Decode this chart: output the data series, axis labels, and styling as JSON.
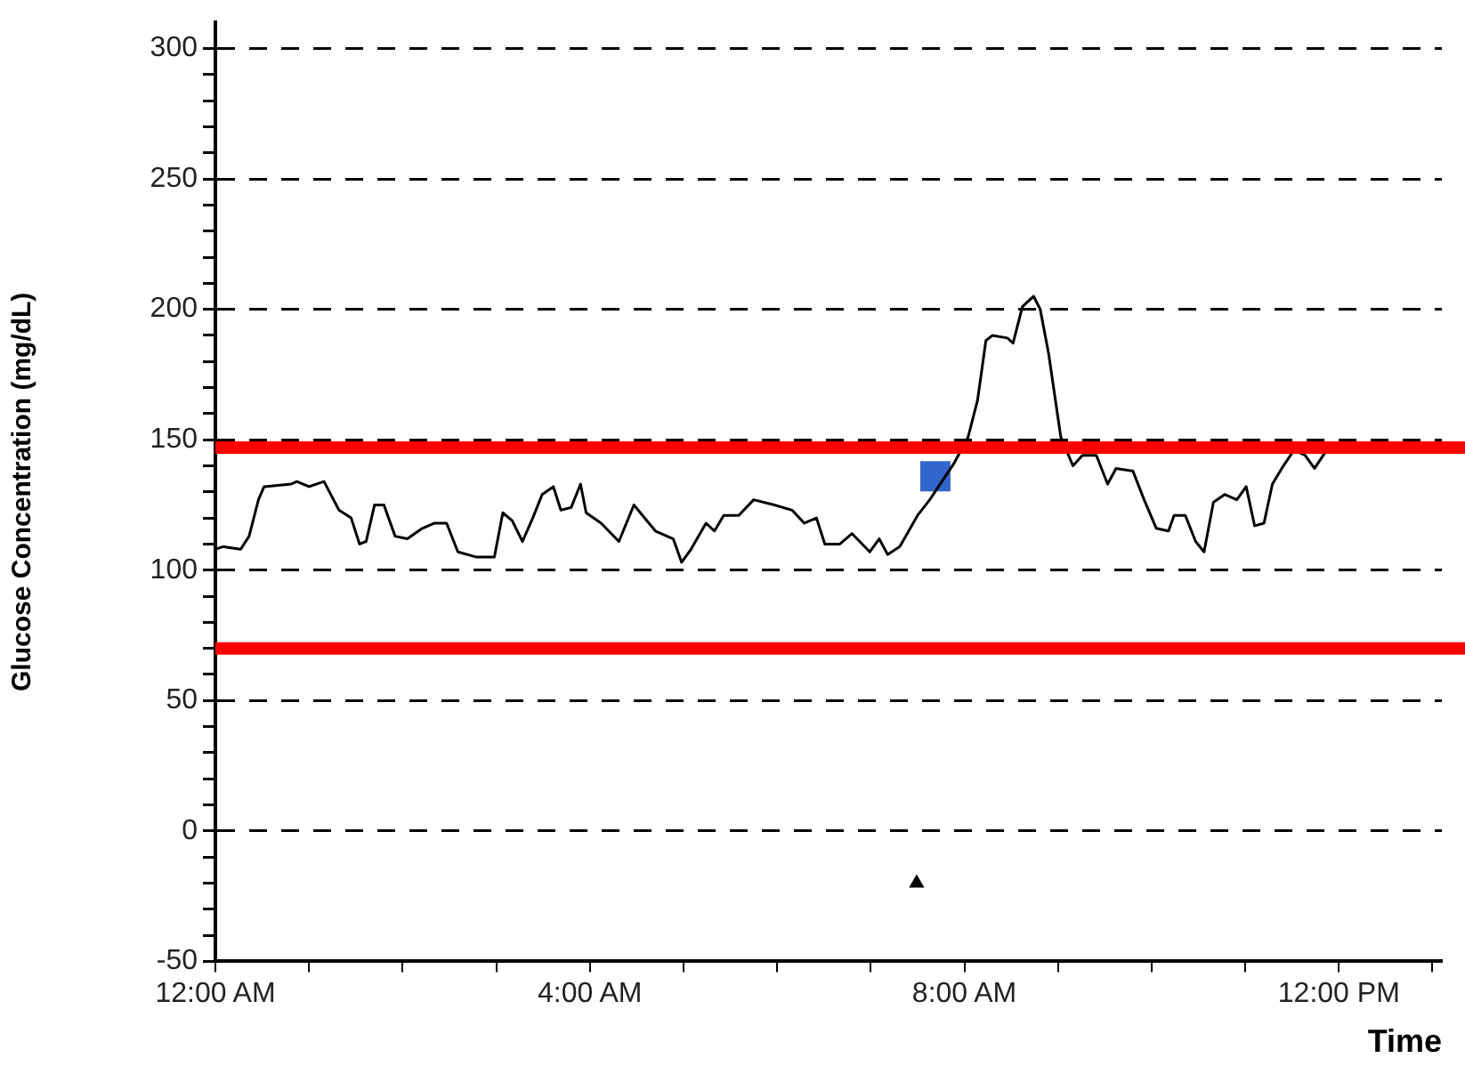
{
  "chart_data": {
    "type": "line",
    "xlabel": "Time",
    "ylabel": "Glucose Concentration (mg/dL)",
    "xlim": [
      0,
      13.1
    ],
    "ylim": [
      -50,
      310
    ],
    "xticks": [
      {
        "value": 0,
        "label": "12:00 AM"
      },
      {
        "value": 1,
        "label": null
      },
      {
        "value": 2,
        "label": null
      },
      {
        "value": 3,
        "label": null
      },
      {
        "value": 4,
        "label": "4:00 AM"
      },
      {
        "value": 5,
        "label": null
      },
      {
        "value": 6,
        "label": null
      },
      {
        "value": 7,
        "label": null
      },
      {
        "value": 8,
        "label": "8:00 AM"
      },
      {
        "value": 9,
        "label": null
      },
      {
        "value": 10,
        "label": null
      },
      {
        "value": 11,
        "label": null
      },
      {
        "value": 12,
        "label": "12:00 PM"
      },
      {
        "value": 13,
        "label": null
      }
    ],
    "yticks": [
      -50,
      {
        "value": -40,
        "label": null
      },
      {
        "value": -30,
        "label": null
      },
      {
        "value": -20,
        "label": null
      },
      {
        "value": -10,
        "label": null
      },
      0,
      {
        "value": 10,
        "label": null
      },
      {
        "value": 20,
        "label": null
      },
      {
        "value": 30,
        "label": null
      },
      {
        "value": 40,
        "label": null
      },
      50,
      {
        "value": 60,
        "label": null
      },
      {
        "value": 70,
        "label": null
      },
      {
        "value": 80,
        "label": null
      },
      {
        "value": 90,
        "label": null
      },
      100,
      {
        "value": 110,
        "label": null
      },
      {
        "value": 120,
        "label": null
      },
      {
        "value": 130,
        "label": null
      },
      {
        "value": 140,
        "label": null
      },
      150,
      {
        "value": 160,
        "label": null
      },
      {
        "value": 170,
        "label": null
      },
      {
        "value": 180,
        "label": null
      },
      {
        "value": 190,
        "label": null
      },
      200,
      {
        "value": 210,
        "label": null
      },
      {
        "value": 220,
        "label": null
      },
      {
        "value": 230,
        "label": null
      },
      {
        "value": 240,
        "label": null
      },
      250,
      {
        "value": 260,
        "label": null
      },
      {
        "value": 270,
        "label": null
      },
      {
        "value": 280,
        "label": null
      },
      {
        "value": 290,
        "label": null
      },
      300
    ],
    "grid": "y",
    "legend": false,
    "ref_lines": [
      {
        "axis": "y",
        "value": 147,
        "color": "#ff0000"
      },
      {
        "axis": "y",
        "value": 70,
        "color": "#ff0000"
      }
    ],
    "series": [
      {
        "color": "#000000",
        "marker": "none",
        "line_style": "solid",
        "x": [
          0,
          0.08,
          0.27,
          0.36,
          0.46,
          0.52,
          0.81,
          0.87,
          1.0,
          1.16,
          1.32,
          1.45,
          1.54,
          1.61,
          1.7,
          1.8,
          1.92,
          2.05,
          2.21,
          2.34,
          2.47,
          2.59,
          2.79,
          2.98,
          3.07,
          3.17,
          3.28,
          3.39,
          3.49,
          3.61,
          3.69,
          3.8,
          3.9,
          3.96,
          4.12,
          4.31,
          4.47,
          4.7,
          4.89,
          4.98,
          5.08,
          5.24,
          5.33,
          5.43,
          5.59,
          5.75,
          5.97,
          6.16,
          6.29,
          6.42,
          6.51,
          6.67,
          6.8,
          6.99,
          7.09,
          7.18,
          7.31,
          7.5,
          7.63,
          7.89,
          8.04,
          8.14,
          8.23,
          8.3,
          8.46,
          8.52,
          8.62,
          8.74,
          8.81,
          8.9,
          9.03,
          9.16,
          9.26,
          9.41,
          9.53,
          9.62,
          9.8,
          9.92,
          10.05,
          10.18,
          10.24,
          10.36,
          10.47,
          10.56,
          10.66,
          10.78,
          10.91,
          11.01,
          11.1,
          11.2,
          11.29,
          11.39,
          11.52,
          11.64,
          11.74,
          11.87
        ],
        "values": [
          108,
          109,
          108,
          113,
          127,
          132,
          133,
          134,
          132,
          134,
          123,
          120,
          110,
          111,
          125,
          125,
          113,
          112,
          116,
          118,
          118,
          107,
          105,
          105,
          122,
          119,
          111,
          120,
          129,
          132,
          123,
          124,
          133,
          122,
          118,
          111,
          125,
          115,
          112,
          103,
          108,
          118,
          115,
          121,
          121,
          127,
          125,
          123,
          118,
          120,
          110,
          110,
          114,
          107,
          112,
          106,
          109,
          121,
          127,
          141,
          151,
          165,
          188,
          190,
          189,
          187,
          201,
          205,
          200,
          183,
          151,
          140,
          144,
          144,
          133,
          139,
          138,
          127,
          116,
          115,
          121,
          121,
          111,
          107,
          126,
          129,
          127,
          132,
          117,
          118,
          133,
          139,
          146,
          144,
          139,
          146
        ]
      },
      {
        "type": "scatter",
        "color": "#3366cc",
        "marker": "square",
        "x": [
          7.69
        ],
        "values": [
          136
        ]
      },
      {
        "type": "scatter",
        "color": "#000000",
        "marker": "triangle",
        "x": [
          7.49
        ],
        "values": [
          -20
        ]
      }
    ]
  }
}
